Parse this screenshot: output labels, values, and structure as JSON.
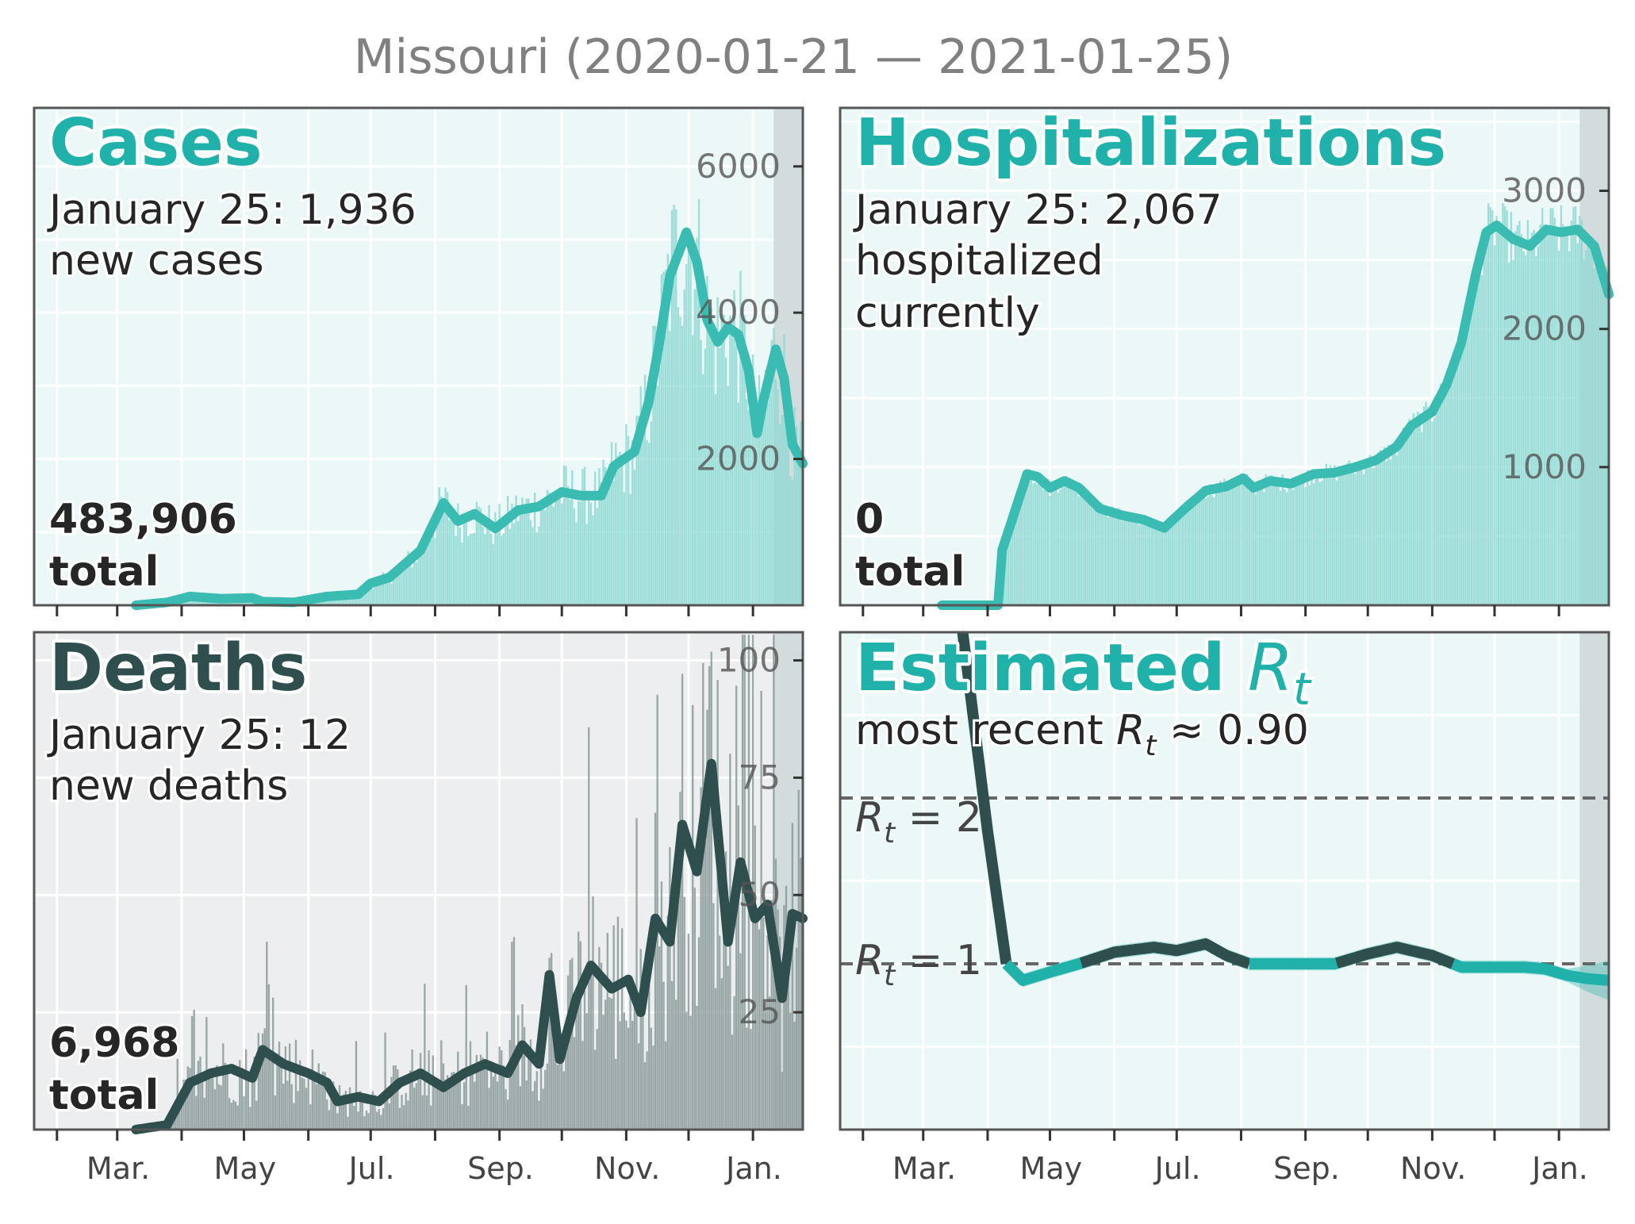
{
  "title": "Missouri (2020-01-21 — 2021-01-25)",
  "colors": {
    "teal": "#20b2aa",
    "teal_line": "#3bbcb2",
    "teal_bar": "#8fd9d3",
    "dark": "#2f4f4f",
    "dark_bar": "#8c9a9a",
    "panel_bg_teal": "#ecf7f7",
    "panel_bg_gray": "#eceeef",
    "recent_shade": "#d3dcdc",
    "dash": "#666666"
  },
  "x_month_labels": [
    "Mar.",
    "May",
    "Jul.",
    "Sep.",
    "Nov.",
    "Jan."
  ],
  "panels": {
    "cases": {
      "title": "Cases",
      "subtitle_line1": "January 25: 1,936",
      "subtitle_line2": "new cases",
      "total_value": "483,906",
      "total_label": "total",
      "y_ticks": [
        "2000",
        "4000",
        "6000"
      ]
    },
    "hosp": {
      "title": "Hospitalizations",
      "subtitle_line1": "January 25: 2,067",
      "subtitle_line2": "hospitalized",
      "subtitle_line3": "currently",
      "total_value": "0",
      "total_label": "total",
      "y_ticks": [
        "1000",
        "2000",
        "3000"
      ]
    },
    "deaths": {
      "title": "Deaths",
      "subtitle_line1": "January 25: 12",
      "subtitle_line2": "new deaths",
      "total_value": "6,968",
      "total_label": "total",
      "y_ticks": [
        "25",
        "50",
        "75",
        "100"
      ]
    },
    "rt": {
      "title_main": "Estimated ",
      "title_R": "R",
      "title_sub": "t",
      "recent_prefix": "most recent ",
      "recent_R": "R",
      "recent_sub": "t",
      "recent_value": " ≈ 0.90",
      "ref2_R": "R",
      "ref2_sub": "t",
      "ref2_value": " = 2",
      "ref1_R": "R",
      "ref1_sub": "t",
      "ref1_value": " = 1"
    }
  },
  "chart_data": [
    {
      "type": "bar",
      "name": "cases",
      "title": "Cases",
      "x_range": [
        "2020-01-21",
        "2021-01-25"
      ],
      "ylim": [
        0,
        6800
      ],
      "rolling_line": [
        [
          "2020-03-10",
          0
        ],
        [
          "2020-03-25",
          40
        ],
        [
          "2020-04-05",
          120
        ],
        [
          "2020-04-20",
          90
        ],
        [
          "2020-05-05",
          100
        ],
        [
          "2020-05-10",
          50
        ],
        [
          "2020-05-25",
          40
        ],
        [
          "2020-06-10",
          120
        ],
        [
          "2020-06-25",
          150
        ],
        [
          "2020-07-01",
          300
        ],
        [
          "2020-07-10",
          380
        ],
        [
          "2020-07-25",
          750
        ],
        [
          "2020-08-05",
          1400
        ],
        [
          "2020-08-12",
          1150
        ],
        [
          "2020-08-20",
          1250
        ],
        [
          "2020-08-30",
          1050
        ],
        [
          "2020-09-10",
          1300
        ],
        [
          "2020-09-20",
          1350
        ],
        [
          "2020-10-01",
          1550
        ],
        [
          "2020-10-10",
          1500
        ],
        [
          "2020-10-20",
          1500
        ],
        [
          "2020-10-26",
          1900
        ],
        [
          "2020-11-05",
          2100
        ],
        [
          "2020-11-12",
          2800
        ],
        [
          "2020-11-17",
          3600
        ],
        [
          "2020-11-22",
          4500
        ],
        [
          "2020-11-30",
          5100
        ],
        [
          "2020-12-05",
          4700
        ],
        [
          "2020-12-10",
          3900
        ],
        [
          "2020-12-15",
          3600
        ],
        [
          "2020-12-20",
          3800
        ],
        [
          "2020-12-25",
          3700
        ],
        [
          "2020-12-30",
          3200
        ],
        [
          "2021-01-03",
          2350
        ],
        [
          "2021-01-06",
          2800
        ],
        [
          "2021-01-12",
          3500
        ],
        [
          "2021-01-16",
          3100
        ],
        [
          "2021-01-20",
          2200
        ],
        [
          "2021-01-25",
          1936
        ]
      ],
      "latest_daily": 1936,
      "total": 483906
    },
    {
      "type": "bar",
      "name": "hospitalizations",
      "title": "Hospitalizations",
      "x_range": [
        "2020-01-21",
        "2021-01-25"
      ],
      "ylim": [
        0,
        3600
      ],
      "rolling_line": [
        [
          "2020-03-10",
          0
        ],
        [
          "2020-04-06",
          0
        ],
        [
          "2020-04-08",
          400
        ],
        [
          "2020-04-20",
          950
        ],
        [
          "2020-04-25",
          930
        ],
        [
          "2020-05-01",
          850
        ],
        [
          "2020-05-08",
          900
        ],
        [
          "2020-05-15",
          850
        ],
        [
          "2020-05-25",
          700
        ],
        [
          "2020-06-05",
          650
        ],
        [
          "2020-06-15",
          620
        ],
        [
          "2020-06-25",
          560
        ],
        [
          "2020-07-05",
          700
        ],
        [
          "2020-07-15",
          830
        ],
        [
          "2020-07-25",
          860
        ],
        [
          "2020-08-02",
          920
        ],
        [
          "2020-08-07",
          850
        ],
        [
          "2020-08-15",
          900
        ],
        [
          "2020-08-25",
          880
        ],
        [
          "2020-09-05",
          950
        ],
        [
          "2020-09-15",
          960
        ],
        [
          "2020-09-25",
          1000
        ],
        [
          "2020-10-05",
          1050
        ],
        [
          "2020-10-15",
          1150
        ],
        [
          "2020-10-22",
          1300
        ],
        [
          "2020-11-01",
          1400
        ],
        [
          "2020-11-08",
          1600
        ],
        [
          "2020-11-15",
          1900
        ],
        [
          "2020-11-22",
          2400
        ],
        [
          "2020-11-27",
          2700
        ],
        [
          "2020-12-02",
          2750
        ],
        [
          "2020-12-10",
          2650
        ],
        [
          "2020-12-18",
          2600
        ],
        [
          "2020-12-26",
          2720
        ],
        [
          "2021-01-02",
          2700
        ],
        [
          "2021-01-10",
          2720
        ],
        [
          "2021-01-18",
          2600
        ],
        [
          "2021-01-25",
          2250
        ]
      ],
      "latest_current": 2067,
      "total": 0
    },
    {
      "type": "bar",
      "name": "deaths",
      "title": "Deaths",
      "x_range": [
        "2020-01-21",
        "2021-01-25"
      ],
      "ylim": [
        0,
        106
      ],
      "rolling_line": [
        [
          "2020-03-10",
          0
        ],
        [
          "2020-03-25",
          1
        ],
        [
          "2020-04-05",
          10
        ],
        [
          "2020-04-15",
          12
        ],
        [
          "2020-04-25",
          13
        ],
        [
          "2020-05-05",
          11
        ],
        [
          "2020-05-10",
          17
        ],
        [
          "2020-05-20",
          14
        ],
        [
          "2020-06-01",
          12
        ],
        [
          "2020-06-10",
          10
        ],
        [
          "2020-06-15",
          6
        ],
        [
          "2020-06-25",
          7
        ],
        [
          "2020-07-05",
          6
        ],
        [
          "2020-07-15",
          10
        ],
        [
          "2020-07-25",
          12
        ],
        [
          "2020-08-05",
          9
        ],
        [
          "2020-08-15",
          12
        ],
        [
          "2020-08-25",
          14
        ],
        [
          "2020-09-05",
          12
        ],
        [
          "2020-09-12",
          18
        ],
        [
          "2020-09-20",
          14
        ],
        [
          "2020-09-25",
          33
        ],
        [
          "2020-09-30",
          15
        ],
        [
          "2020-10-08",
          28
        ],
        [
          "2020-10-15",
          35
        ],
        [
          "2020-10-25",
          30
        ],
        [
          "2020-11-02",
          32
        ],
        [
          "2020-11-08",
          25
        ],
        [
          "2020-11-15",
          45
        ],
        [
          "2020-11-22",
          40
        ],
        [
          "2020-11-28",
          65
        ],
        [
          "2020-12-05",
          55
        ],
        [
          "2020-12-12",
          78
        ],
        [
          "2020-12-20",
          40
        ],
        [
          "2020-12-26",
          57
        ],
        [
          "2021-01-02",
          45
        ],
        [
          "2021-01-08",
          48
        ],
        [
          "2021-01-15",
          28
        ],
        [
          "2021-01-20",
          46
        ],
        [
          "2021-01-25",
          45
        ]
      ],
      "latest_daily": 12,
      "total": 6968
    },
    {
      "type": "line",
      "name": "rt",
      "title": "Estimated Rt",
      "x_range": [
        "2020-01-21",
        "2021-01-25"
      ],
      "ylim": [
        0,
        3
      ],
      "reference_lines": [
        1,
        2
      ],
      "estimate": [
        [
          "2020-03-20",
          3.0
        ],
        [
          "2020-04-01",
          1.8
        ],
        [
          "2020-04-10",
          1.0
        ],
        [
          "2020-04-18",
          0.9
        ],
        [
          "2020-05-01",
          0.95
        ],
        [
          "2020-05-15",
          1.0
        ],
        [
          "2020-06-01",
          1.07
        ],
        [
          "2020-06-20",
          1.1
        ],
        [
          "2020-07-01",
          1.08
        ],
        [
          "2020-07-15",
          1.12
        ],
        [
          "2020-07-25",
          1.05
        ],
        [
          "2020-08-05",
          1.0
        ],
        [
          "2020-08-25",
          1.0
        ],
        [
          "2020-09-15",
          1.0
        ],
        [
          "2020-10-01",
          1.06
        ],
        [
          "2020-10-15",
          1.1
        ],
        [
          "2020-11-01",
          1.05
        ],
        [
          "2020-11-15",
          0.98
        ],
        [
          "2020-12-01",
          0.98
        ],
        [
          "2020-12-15",
          0.98
        ],
        [
          "2020-12-25",
          0.97
        ],
        [
          "2021-01-05",
          0.93
        ],
        [
          "2021-01-15",
          0.91
        ],
        [
          "2021-01-25",
          0.9
        ]
      ],
      "most_recent": 0.9
    }
  ]
}
